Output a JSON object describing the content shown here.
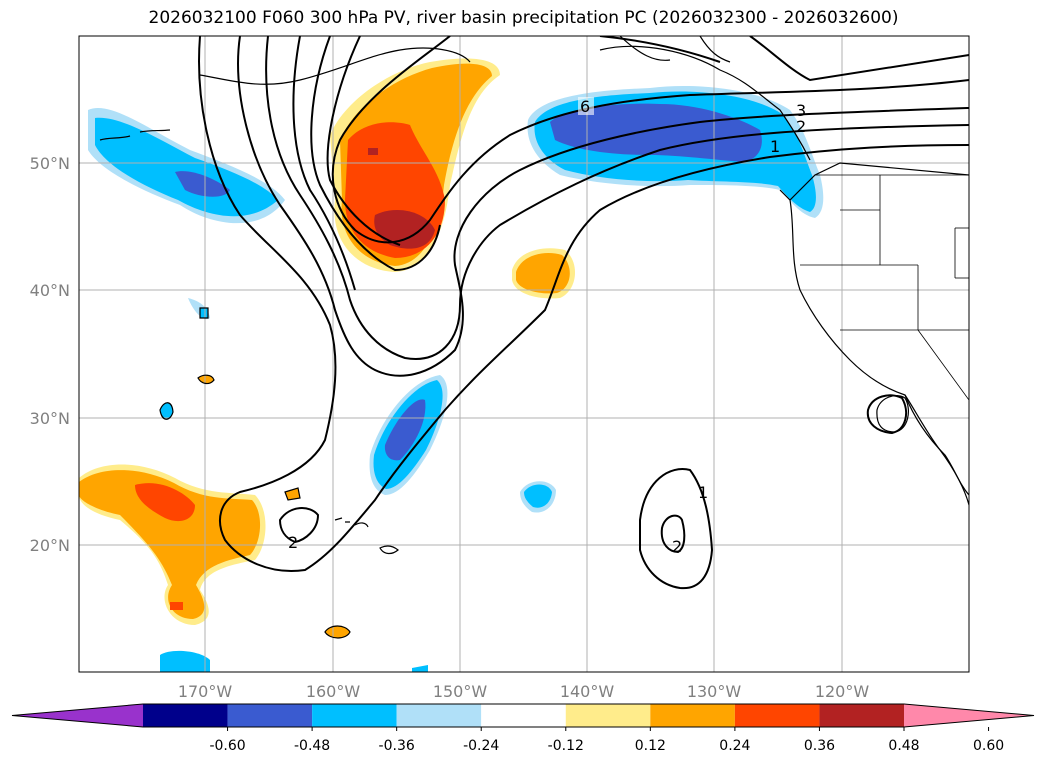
{
  "title": "2026032100 F060 300 hPa PV, river basin precipitation PC (2026032300 - 2026032600)",
  "lat_labels": [
    "20°N",
    "30°N",
    "40°N",
    "50°N"
  ],
  "lon_labels": [
    "170°W",
    "160°W",
    "150°W",
    "140°W",
    "130°W",
    "120°W"
  ],
  "colorbar": {
    "colors": [
      "#9932cc",
      "#00008b",
      "#3a5bd0",
      "#00bfff",
      "#b0e0f8",
      "#ffffff",
      "#ffec8b",
      "#ffa500",
      "#ff4500",
      "#b22222",
      "#ff88aa"
    ],
    "ticks": [
      "-0.60",
      "-0.48",
      "-0.36",
      "-0.24",
      "-0.12",
      "0.12",
      "0.24",
      "0.36",
      "0.48",
      "0.60"
    ]
  },
  "pv_contour_labels": [
    "6",
    "3",
    "2",
    "1",
    "2",
    "1",
    "2"
  ]
}
